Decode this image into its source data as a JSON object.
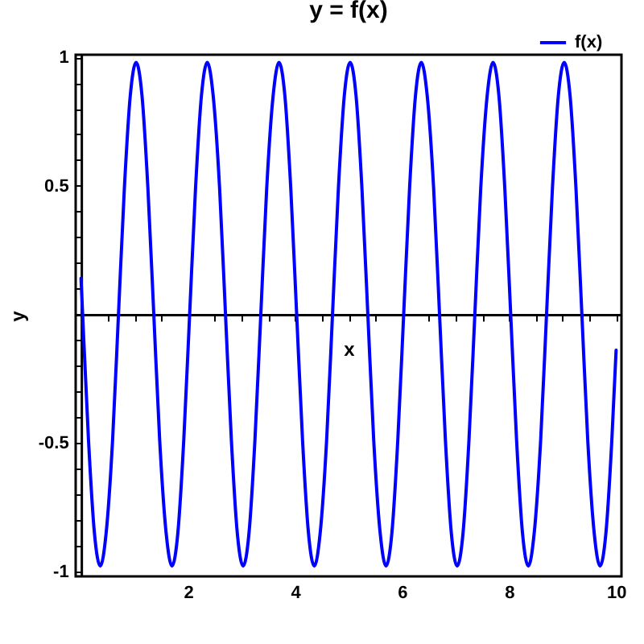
{
  "chart_data": {
    "type": "line",
    "title": "y = f(x)",
    "xlabel": "x",
    "ylabel": "y",
    "x": [
      0,
      0.03,
      0.14,
      0.25,
      0.36,
      0.47,
      0.59,
      0.7,
      0.81,
      0.92,
      1.03,
      1.14,
      1.25,
      1.36,
      1.47,
      1.59,
      1.7,
      1.81,
      1.92,
      2.03,
      2.14,
      2.25,
      2.36,
      2.47,
      2.59,
      2.7,
      2.81,
      2.92,
      3.03,
      3.14,
      3.25,
      3.36,
      3.47,
      3.59,
      3.7,
      3.81,
      3.92,
      4.03,
      4.14,
      4.25,
      4.36,
      4.47,
      4.59,
      4.7,
      4.81,
      4.92,
      5.03,
      5.14,
      5.25,
      5.36,
      5.47,
      5.59,
      5.7,
      5.81,
      5.92,
      6.03,
      6.14,
      6.25,
      6.36,
      6.47,
      6.59,
      6.7,
      6.81,
      6.92,
      7.03,
      7.14,
      7.25,
      7.36,
      7.47,
      7.59,
      7.7,
      7.81,
      7.92,
      8.03,
      8.14,
      8.25,
      8.36,
      8.47,
      8.59,
      8.7,
      8.81,
      8.92,
      9.03,
      9.14,
      9.25,
      9.36,
      9.47,
      9.59,
      9.7,
      9.81,
      9.92,
      10
    ],
    "series": [
      {
        "name": "f(x)",
        "color": "#0000ff",
        "values": [
          0.14,
          0,
          -0.49,
          -0.85,
          -0.98,
          -0.85,
          -0.49,
          0,
          0.49,
          0.85,
          0.98,
          0.85,
          0.49,
          0,
          -0.49,
          -0.85,
          -0.98,
          -0.85,
          -0.49,
          0,
          0.49,
          0.85,
          0.98,
          0.85,
          0.49,
          0,
          -0.49,
          -0.85,
          -0.98,
          -0.85,
          -0.49,
          0,
          0.49,
          0.85,
          0.98,
          0.85,
          0.49,
          0,
          -0.49,
          -0.85,
          -0.98,
          -0.85,
          -0.49,
          0,
          0.49,
          0.85,
          0.98,
          0.85,
          0.49,
          0,
          -0.49,
          -0.85,
          -0.98,
          -0.85,
          -0.49,
          0,
          0.49,
          0.85,
          0.98,
          0.85,
          0.49,
          0,
          -0.49,
          -0.85,
          -0.98,
          -0.85,
          -0.49,
          0,
          0.49,
          0.85,
          0.98,
          0.85,
          0.49,
          0,
          -0.49,
          -0.85,
          -0.98,
          -0.85,
          -0.49,
          0,
          0.49,
          0.85,
          0.98,
          0.85,
          0.49,
          0,
          -0.49,
          -0.85,
          -0.98,
          -0.85,
          -0.49,
          -0.14
        ]
      }
    ],
    "xlim": [
      -0.1,
      10.1
    ],
    "ylim": [
      -1.02,
      1.01
    ],
    "xticks": [
      {
        "value": 0.5,
        "label": null
      },
      {
        "value": 1,
        "label": null
      },
      {
        "value": 1.5,
        "label": null
      },
      2,
      {
        "value": 2.5,
        "label": null
      },
      {
        "value": 3,
        "label": null
      },
      {
        "value": 3.5,
        "label": null
      },
      4,
      {
        "value": 4.5,
        "label": null
      },
      {
        "value": 5,
        "label": null
      },
      {
        "value": 5.5,
        "label": null
      },
      6,
      {
        "value": 6.5,
        "label": null
      },
      {
        "value": 7,
        "label": null
      },
      {
        "value": 7.5,
        "label": null
      },
      8,
      {
        "value": 8.5,
        "label": null
      },
      {
        "value": 9,
        "label": null
      },
      {
        "value": 9.5,
        "label": null
      },
      10
    ],
    "yticks": [
      -1,
      {
        "value": -0.9,
        "label": null
      },
      {
        "value": -0.8,
        "label": null
      },
      {
        "value": -0.7,
        "label": null
      },
      {
        "value": -0.6,
        "label": null
      },
      -0.5,
      {
        "value": -0.4,
        "label": null
      },
      {
        "value": -0.3,
        "label": null
      },
      {
        "value": -0.2,
        "label": null
      },
      {
        "value": -0.1,
        "label": null
      },
      {
        "value": 0.1,
        "label": null
      },
      {
        "value": 0.2,
        "label": null
      },
      {
        "value": 0.3,
        "label": null
      },
      {
        "value": 0.4,
        "label": null
      },
      0.5,
      {
        "value": 0.6,
        "label": null
      },
      {
        "value": 0.7,
        "label": null
      },
      {
        "value": 0.8,
        "label": null
      },
      {
        "value": 0.9,
        "label": null
      },
      1
    ],
    "legend": "top right",
    "grid": false,
    "line_style": "solid"
  }
}
